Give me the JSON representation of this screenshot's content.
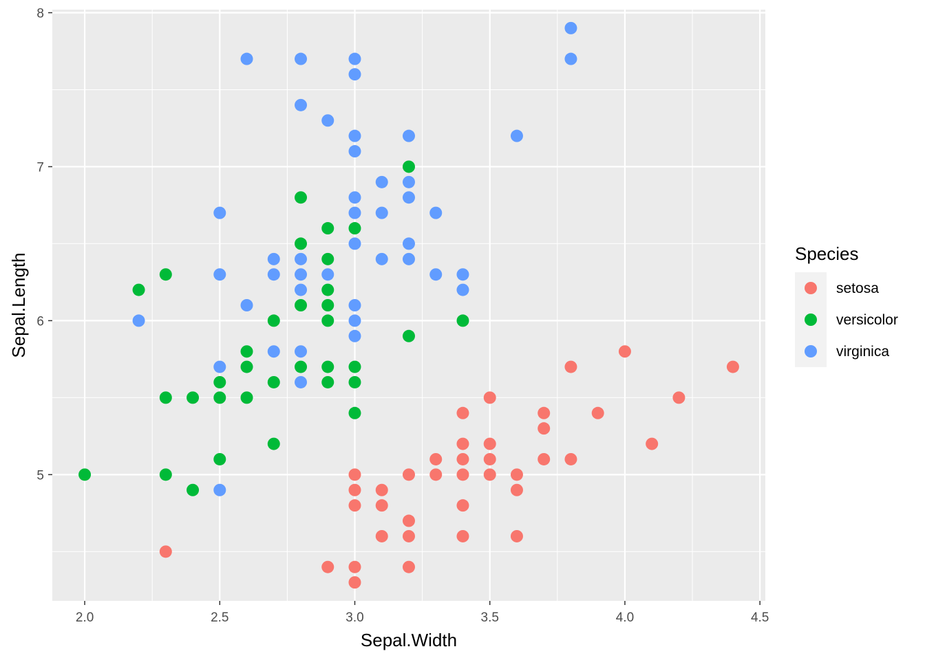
{
  "chart_data": {
    "type": "scatter",
    "title": "",
    "xlabel": "Sepal.Width",
    "ylabel": "Sepal.Length",
    "xlim": [
      1.88,
      4.52
    ],
    "ylim": [
      4.18,
      8.02
    ],
    "x_ticks": [
      2.0,
      2.5,
      3.0,
      3.5,
      4.0,
      4.5
    ],
    "x_tick_labels": [
      "2.0",
      "2.5",
      "3.0",
      "3.5",
      "4.0",
      "4.5"
    ],
    "y_ticks": [
      5,
      6,
      7,
      8
    ],
    "y_tick_labels": [
      "5",
      "6",
      "7",
      "8"
    ],
    "grid": true,
    "panel_background": "#ebebeb",
    "legend": {
      "title": "Species",
      "position": "right"
    },
    "series": [
      {
        "name": "setosa",
        "color": "#f8766d",
        "points": [
          [
            2.3,
            4.5
          ],
          [
            2.9,
            4.4
          ],
          [
            3.0,
            4.4
          ],
          [
            3.0,
            4.3
          ],
          [
            3.2,
            4.4
          ],
          [
            3.0,
            5.0
          ],
          [
            3.0,
            4.9
          ],
          [
            3.0,
            4.8
          ],
          [
            3.1,
            4.9
          ],
          [
            3.1,
            4.8
          ],
          [
            3.1,
            4.6
          ],
          [
            3.2,
            5.0
          ],
          [
            3.2,
            4.7
          ],
          [
            3.2,
            4.6
          ],
          [
            3.3,
            5.1
          ],
          [
            3.3,
            5.0
          ],
          [
            3.4,
            5.4
          ],
          [
            3.4,
            5.2
          ],
          [
            3.4,
            5.1
          ],
          [
            3.4,
            5.0
          ],
          [
            3.4,
            4.8
          ],
          [
            3.4,
            4.6
          ],
          [
            3.5,
            5.5
          ],
          [
            3.5,
            5.2
          ],
          [
            3.5,
            5.1
          ],
          [
            3.5,
            5.0
          ],
          [
            3.6,
            5.0
          ],
          [
            3.6,
            4.9
          ],
          [
            3.6,
            4.6
          ],
          [
            3.7,
            5.4
          ],
          [
            3.7,
            5.3
          ],
          [
            3.7,
            5.1
          ],
          [
            3.8,
            5.7
          ],
          [
            3.8,
            5.1
          ],
          [
            3.9,
            5.4
          ],
          [
            4.0,
            5.8
          ],
          [
            4.1,
            5.2
          ],
          [
            4.2,
            5.5
          ],
          [
            4.4,
            5.7
          ]
        ]
      },
      {
        "name": "versicolor",
        "color": "#00ba38",
        "points": [
          [
            2.0,
            5.0
          ],
          [
            2.2,
            6.2
          ],
          [
            2.3,
            6.3
          ],
          [
            2.3,
            5.5
          ],
          [
            2.3,
            5.0
          ],
          [
            2.4,
            5.5
          ],
          [
            2.4,
            4.9
          ],
          [
            2.5,
            5.6
          ],
          [
            2.5,
            5.5
          ],
          [
            2.5,
            5.1
          ],
          [
            2.6,
            5.8
          ],
          [
            2.6,
            5.7
          ],
          [
            2.6,
            5.5
          ],
          [
            2.7,
            6.0
          ],
          [
            2.7,
            5.6
          ],
          [
            2.7,
            5.2
          ],
          [
            2.8,
            6.8
          ],
          [
            2.8,
            6.5
          ],
          [
            2.8,
            6.1
          ],
          [
            2.8,
            5.7
          ],
          [
            2.9,
            6.6
          ],
          [
            2.9,
            6.4
          ],
          [
            2.9,
            6.2
          ],
          [
            2.9,
            6.1
          ],
          [
            2.9,
            6.0
          ],
          [
            2.9,
            5.7
          ],
          [
            2.9,
            5.6
          ],
          [
            3.0,
            6.6
          ],
          [
            3.0,
            5.7
          ],
          [
            3.0,
            5.6
          ],
          [
            3.0,
            5.4
          ],
          [
            3.2,
            7.0
          ],
          [
            3.2,
            5.9
          ],
          [
            3.4,
            6.0
          ]
        ]
      },
      {
        "name": "virginica",
        "color": "#619cff",
        "points": [
          [
            2.2,
            6.0
          ],
          [
            2.5,
            6.7
          ],
          [
            2.5,
            6.3
          ],
          [
            2.5,
            5.7
          ],
          [
            2.5,
            4.9
          ],
          [
            2.6,
            7.7
          ],
          [
            2.6,
            6.1
          ],
          [
            2.7,
            6.4
          ],
          [
            2.7,
            6.3
          ],
          [
            2.7,
            5.8
          ],
          [
            2.8,
            7.7
          ],
          [
            2.8,
            7.4
          ],
          [
            2.8,
            6.4
          ],
          [
            2.8,
            6.3
          ],
          [
            2.8,
            6.2
          ],
          [
            2.8,
            5.8
          ],
          [
            2.8,
            5.6
          ],
          [
            2.9,
            7.3
          ],
          [
            2.9,
            6.3
          ],
          [
            3.0,
            7.7
          ],
          [
            3.0,
            7.6
          ],
          [
            3.0,
            7.2
          ],
          [
            3.0,
            7.1
          ],
          [
            3.0,
            6.8
          ],
          [
            3.0,
            6.7
          ],
          [
            3.0,
            6.5
          ],
          [
            3.0,
            6.1
          ],
          [
            3.0,
            6.0
          ],
          [
            3.0,
            5.9
          ],
          [
            3.1,
            6.9
          ],
          [
            3.1,
            6.7
          ],
          [
            3.1,
            6.4
          ],
          [
            3.2,
            7.2
          ],
          [
            3.2,
            6.9
          ],
          [
            3.2,
            6.8
          ],
          [
            3.2,
            6.5
          ],
          [
            3.2,
            6.4
          ],
          [
            3.3,
            6.7
          ],
          [
            3.3,
            6.3
          ],
          [
            3.4,
            6.3
          ],
          [
            3.4,
            6.2
          ],
          [
            3.6,
            7.2
          ],
          [
            3.8,
            7.9
          ],
          [
            3.8,
            7.7
          ]
        ]
      }
    ]
  }
}
